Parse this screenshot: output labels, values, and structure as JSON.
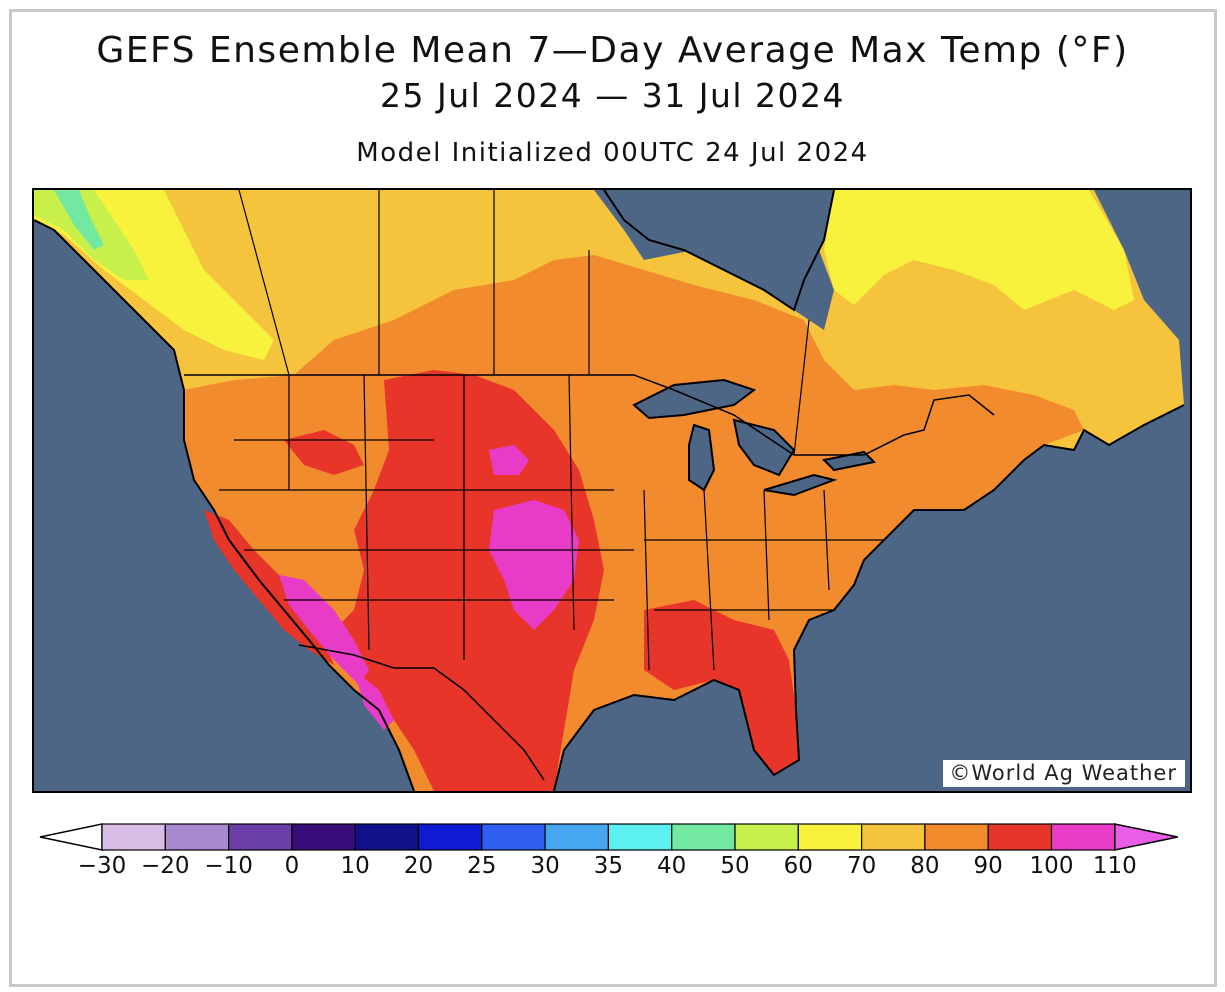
{
  "title": "GEFS Ensemble Mean 7—Day Average Max Temp (°F)",
  "date_range": "25 Jul 2024 — 31 Jul 2024",
  "model_init": "Model Initialized 00UTC 24 Jul 2024",
  "credit": "©World Ag Weather",
  "colors": {
    "ocean": "#4d6686",
    "c40": "#73e8a0",
    "c50": "#c8f04a",
    "c60": "#f8f23c",
    "c70": "#f6c43c",
    "c80": "#f28a2e",
    "c90": "#e8352a",
    "c100": "#e83cc8"
  },
  "colorbar": {
    "bins": [
      {
        "label": "−30",
        "color": "#d8bde6"
      },
      {
        "label": "−20",
        "color": "#a98ad0"
      },
      {
        "label": "−10",
        "color": "#6a3fa8"
      },
      {
        "label": "0",
        "color": "#3a0e7a"
      },
      {
        "label": "10",
        "color": "#10108a"
      },
      {
        "label": "20",
        "color": "#0e1ad4"
      },
      {
        "label": "25",
        "color": "#2f5ff0"
      },
      {
        "label": "30",
        "color": "#47a6f0"
      },
      {
        "label": "35",
        "color": "#5cf0f0"
      },
      {
        "label": "40",
        "color": "#73e8a0"
      },
      {
        "label": "50",
        "color": "#c8f04a"
      },
      {
        "label": "60",
        "color": "#f8f23c"
      },
      {
        "label": "70",
        "color": "#f6c43c"
      },
      {
        "label": "80",
        "color": "#f28a2e"
      },
      {
        "label": "90",
        "color": "#e8352a"
      },
      {
        "label": "100",
        "color": "#e83cc8"
      },
      {
        "label": "110",
        "color": "#e85ee8"
      }
    ]
  }
}
